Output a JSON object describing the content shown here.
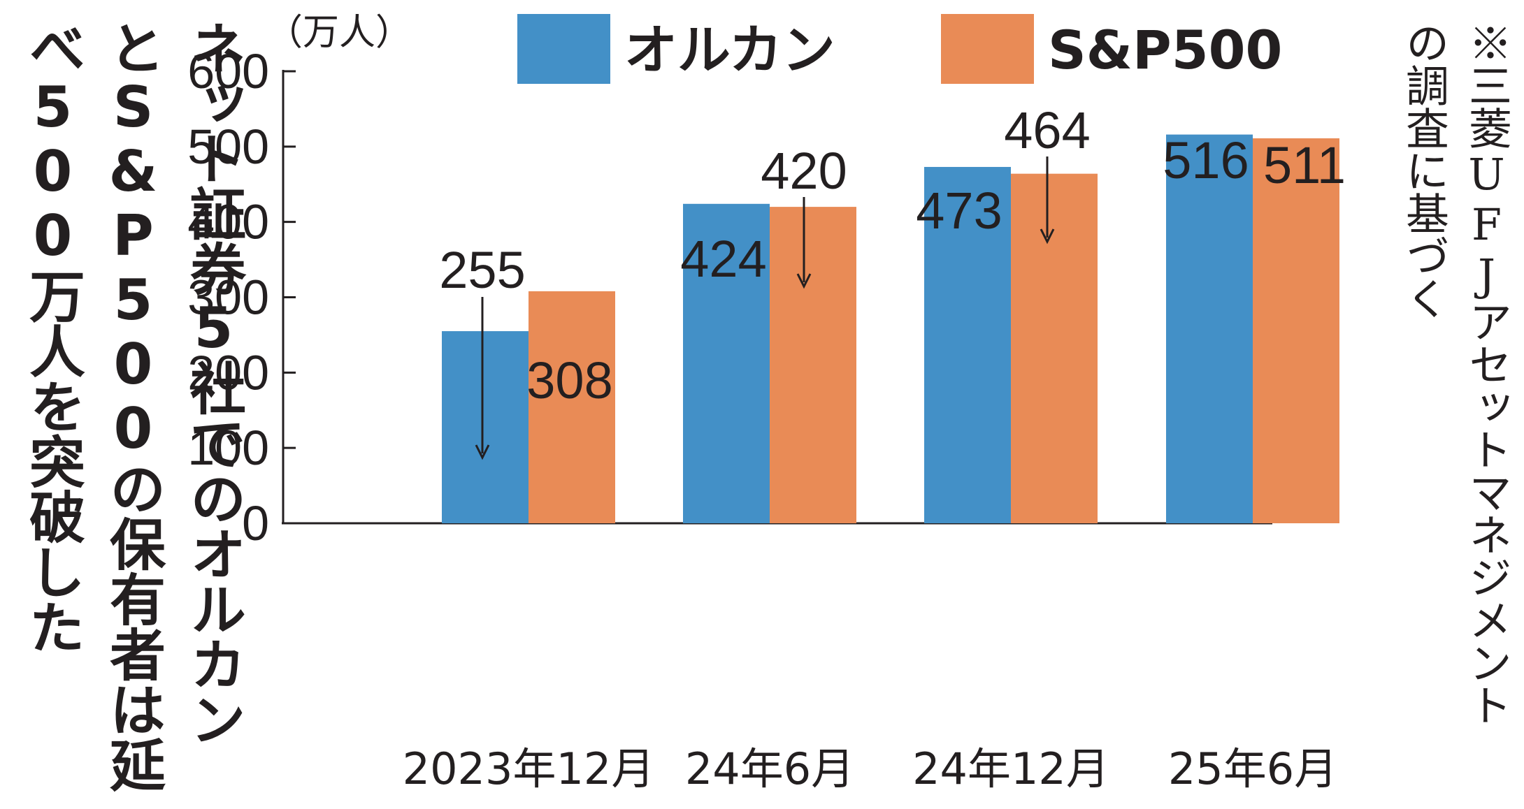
{
  "title": {
    "lines": [
      "ネット証券5社でのオルカン",
      "とS&P500の保有者は延",
      "べ500万人を突破した"
    ]
  },
  "source": {
    "lines": [
      "※三菱UFJアセットマネジメント",
      "の調査に基づく"
    ]
  },
  "colors": {
    "orukan": "#4390c7",
    "sp500": "#e98b56",
    "axis": "#231f20"
  },
  "chart_data": {
    "type": "bar",
    "ylabel": "（万人）",
    "ylim": [
      0,
      600
    ],
    "yticks": [
      0,
      100,
      200,
      300,
      400,
      500,
      600
    ],
    "categories": [
      "2023年12月",
      "24年6月",
      "24年12月",
      "25年6月"
    ],
    "series": [
      {
        "name": "オルカン",
        "values": [
          255,
          424,
          473,
          516
        ]
      },
      {
        "name": "S&P500",
        "values": [
          308,
          420,
          464,
          511
        ]
      }
    ],
    "legend_position": "top",
    "grid": false
  }
}
